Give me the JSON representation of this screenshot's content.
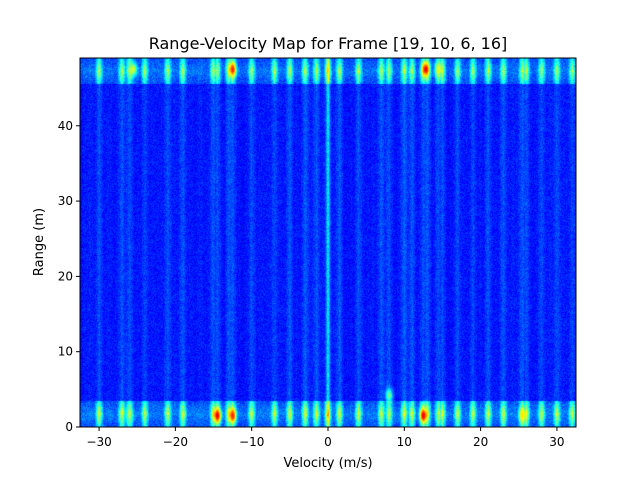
{
  "chart_data": {
    "type": "heatmap",
    "title": "Range-Velocity Map for Frame [19, 10, 6, 16]",
    "xlabel": "Velocity (m/s)",
    "ylabel": "Range (m)",
    "xlim": [
      -32.5,
      32.5
    ],
    "ylim": [
      0,
      49
    ],
    "x_ticks": [
      -30,
      -20,
      -10,
      0,
      10,
      20,
      30
    ],
    "x_tick_labels": [
      "−30",
      "−20",
      "−10",
      "0",
      "10",
      "20",
      "30"
    ],
    "y_ticks": [
      0,
      10,
      20,
      30,
      40
    ],
    "y_tick_labels": [
      "0",
      "10",
      "20",
      "30",
      "40"
    ],
    "colormap": "jet",
    "background_level": 0.12,
    "grid": false,
    "bright_columns_velocity": [
      -30,
      -27,
      -26,
      -24,
      -21,
      -19,
      -15,
      -14.5,
      -13,
      -12.5,
      -10,
      -7,
      -5,
      -3,
      -1.5,
      0,
      1.5,
      4,
      7,
      8,
      10,
      11,
      12.5,
      13,
      14.5,
      15,
      17,
      19,
      21,
      23,
      25.5,
      26,
      28,
      30,
      32
    ],
    "hotspots": [
      {
        "velocity": -14.5,
        "range": 1.5,
        "level": 0.9
      },
      {
        "velocity": -12.5,
        "range": 1.5,
        "level": 0.85
      },
      {
        "velocity": -12.5,
        "range": 47.5,
        "level": 0.85
      },
      {
        "velocity": 12.5,
        "range": 1.5,
        "level": 0.9
      },
      {
        "velocity": 12.8,
        "range": 47.5,
        "level": 0.9
      },
      {
        "velocity": 14.5,
        "range": 47.5,
        "level": 0.6
      },
      {
        "velocity": -25.5,
        "range": 47.5,
        "level": 0.6
      },
      {
        "velocity": 25.5,
        "range": 1.5,
        "level": 0.65
      },
      {
        "velocity": -26,
        "range": 1.5,
        "level": 0.45
      },
      {
        "velocity": 8,
        "range": 4.2,
        "level": 0.5
      }
    ],
    "bands": [
      {
        "name": "near-range",
        "range_from": 0,
        "range_to": 3.5,
        "level": 0.42
      },
      {
        "name": "far-range",
        "range_from": 45.5,
        "range_to": 49,
        "level": 0.38
      }
    ],
    "zero_velocity_ridge": {
      "velocity": 0,
      "level": 0.3
    }
  }
}
